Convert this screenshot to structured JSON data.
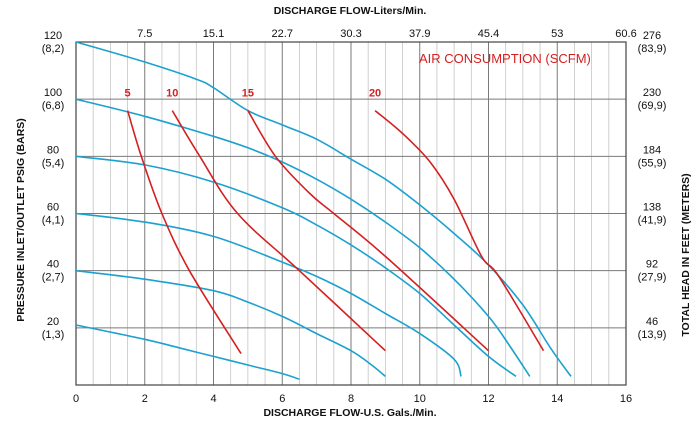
{
  "chart_data": {
    "type": "line",
    "title_top": "DISCHARGE FLOW-Liters/Min.",
    "xlabel": "DISCHARGE FLOW-U.S. Gals./Min.",
    "ylabel_left": "PRESSURE INLET/OUTLET PSIG (BARS)",
    "ylabel_right": "TOTAL HEAD IN FEET (METERS)",
    "annotation": "AIR CONSUMPTION (SCFM)",
    "xlim": [
      0,
      16
    ],
    "ylim": [
      0,
      120
    ],
    "grid": true,
    "x_ticks": [
      "0",
      "2",
      "4",
      "6",
      "8",
      "10",
      "12",
      "14",
      "16"
    ],
    "x_ticks_top": [
      "7.5",
      "15.1",
      "22.7",
      "30.3",
      "37.9",
      "45.4",
      "53",
      "60.6"
    ],
    "y_ticks_left": [
      {
        "psi": "120",
        "bar": "(8,2)"
      },
      {
        "psi": "100",
        "bar": "(6,8)"
      },
      {
        "psi": "80",
        "bar": "(5,4)"
      },
      {
        "psi": "60",
        "bar": "(4,1)"
      },
      {
        "psi": "40",
        "bar": "(2,7)"
      },
      {
        "psi": "20",
        "bar": "(1,3)"
      }
    ],
    "y_ticks_right": [
      {
        "ft": "276",
        "m": "(83,9)"
      },
      {
        "ft": "230",
        "m": "(69,9)"
      },
      {
        "ft": "184",
        "m": "(55,9)"
      },
      {
        "ft": "138",
        "m": "(41,9)"
      },
      {
        "ft": "92",
        "m": "(27,9)"
      },
      {
        "ft": "46",
        "m": "(13,9)"
      }
    ],
    "colors": {
      "pressure": "#1ba1cf",
      "air": "#d42020",
      "grid": "#7a7a7a",
      "minor_grid": "#c4c4c4"
    },
    "series_pressure": [
      {
        "points": [
          [
            0,
            120
          ],
          [
            2,
            113
          ],
          [
            3.5,
            107
          ],
          [
            4,
            104
          ],
          [
            5,
            96
          ],
          [
            6,
            91
          ],
          [
            7,
            86
          ],
          [
            8,
            79
          ],
          [
            9,
            72
          ],
          [
            10,
            63
          ],
          [
            11,
            53
          ],
          [
            12,
            42
          ],
          [
            13,
            28
          ],
          [
            13.8,
            13
          ],
          [
            14.4,
            3
          ]
        ]
      },
      {
        "points": [
          [
            0,
            100
          ],
          [
            2,
            94
          ],
          [
            4,
            87
          ],
          [
            5,
            83
          ],
          [
            6,
            78
          ],
          [
            7,
            72
          ],
          [
            8,
            65
          ],
          [
            9,
            57
          ],
          [
            10,
            48
          ],
          [
            11,
            37
          ],
          [
            12,
            24
          ],
          [
            12.6,
            14
          ],
          [
            13.2,
            3
          ]
        ]
      },
      {
        "points": [
          [
            0,
            80
          ],
          [
            2,
            77
          ],
          [
            4,
            71
          ],
          [
            6,
            62
          ],
          [
            7,
            56
          ],
          [
            8,
            49
          ],
          [
            9,
            41
          ],
          [
            10,
            32
          ],
          [
            11,
            21
          ],
          [
            12,
            10
          ],
          [
            12.8,
            3
          ]
        ]
      },
      {
        "points": [
          [
            0,
            60
          ],
          [
            2,
            57
          ],
          [
            4,
            52
          ],
          [
            6,
            43
          ],
          [
            7,
            38
          ],
          [
            8,
            32
          ],
          [
            9,
            25
          ],
          [
            10,
            18
          ],
          [
            11,
            9
          ],
          [
            11.2,
            3
          ]
        ]
      },
      {
        "points": [
          [
            0,
            40
          ],
          [
            2,
            37
          ],
          [
            4,
            33
          ],
          [
            5,
            29
          ],
          [
            6,
            24
          ],
          [
            7,
            18
          ],
          [
            8,
            12
          ],
          [
            8.6,
            7
          ],
          [
            9,
            3
          ]
        ]
      },
      {
        "points": [
          [
            0,
            21
          ],
          [
            2,
            16
          ],
          [
            3,
            13
          ],
          [
            4,
            10
          ],
          [
            5,
            7
          ],
          [
            6,
            4
          ],
          [
            6.5,
            2
          ]
        ]
      }
    ],
    "series_air": [
      {
        "name": "5",
        "label_at": [
          1.5,
          101
        ],
        "points": [
          [
            1.5,
            96
          ],
          [
            1.9,
            80
          ],
          [
            2.5,
            60
          ],
          [
            3.3,
            40
          ],
          [
            4.8,
            11
          ]
        ]
      },
      {
        "name": "10",
        "label_at": [
          2.8,
          101
        ],
        "points": [
          [
            2.8,
            96
          ],
          [
            3.6,
            80
          ],
          [
            4.7,
            60
          ],
          [
            6.5,
            40
          ],
          [
            9.0,
            12
          ]
        ]
      },
      {
        "name": "15",
        "label_at": [
          5.0,
          101
        ],
        "points": [
          [
            5.0,
            96
          ],
          [
            5.8,
            80
          ],
          [
            6.8,
            67
          ],
          [
            7.5,
            60
          ],
          [
            9.0,
            45
          ],
          [
            12.0,
            12
          ]
        ]
      },
      {
        "name": "20",
        "label_at": [
          8.7,
          101
        ],
        "points": [
          [
            8.7,
            96
          ],
          [
            9.5,
            88
          ],
          [
            10.3,
            78
          ],
          [
            11.0,
            65
          ],
          [
            11.8,
            45
          ],
          [
            12.3,
            38
          ],
          [
            13.6,
            12
          ]
        ]
      }
    ]
  }
}
